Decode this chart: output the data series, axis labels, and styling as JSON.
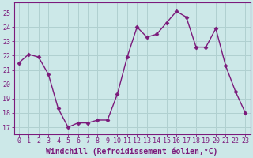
{
  "x": [
    0,
    1,
    2,
    3,
    4,
    5,
    6,
    7,
    8,
    9,
    10,
    11,
    12,
    13,
    14,
    15,
    16,
    17,
    18,
    19,
    20,
    21,
    22,
    23
  ],
  "y": [
    21.5,
    22.1,
    21.9,
    20.7,
    18.3,
    17.0,
    17.3,
    17.3,
    17.5,
    17.5,
    19.3,
    21.9,
    24.0,
    23.3,
    23.5,
    24.3,
    25.1,
    24.7,
    22.6,
    22.6,
    23.9,
    21.3,
    19.5,
    18.0
  ],
  "line_color": "#7b1a7b",
  "marker": "D",
  "marker_size": 2.5,
  "bg_color": "#cce8e8",
  "grid_color": "#b0d0d0",
  "xlabel": "Windchill (Refroidissement éolien,°C)",
  "ylim": [
    16.5,
    25.7
  ],
  "yticks": [
    17,
    18,
    19,
    20,
    21,
    22,
    23,
    24,
    25
  ],
  "xticks": [
    0,
    1,
    2,
    3,
    4,
    5,
    6,
    7,
    8,
    9,
    10,
    11,
    12,
    13,
    14,
    15,
    16,
    17,
    18,
    19,
    20,
    21,
    22,
    23
  ],
  "tick_fontsize": 6.0,
  "xlabel_fontsize": 7.0,
  "linewidth": 1.0
}
